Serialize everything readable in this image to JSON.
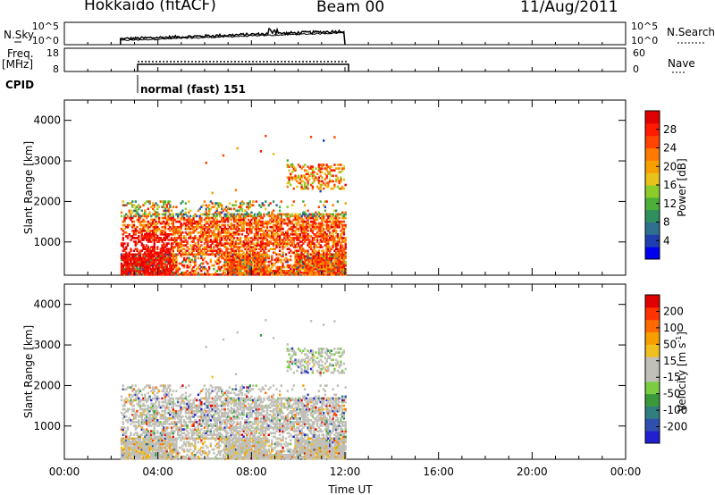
{
  "header": {
    "station": "Hokkaido (fitACF)",
    "beam": "Beam 00",
    "date": "11/Aug/2011"
  },
  "colors": {
    "palette": [
      "#0000ee",
      "#1f3fb0",
      "#2f6f8f",
      "#2f8f5f",
      "#4caf3a",
      "#8ccc2a",
      "#e6c21a",
      "#f5a000",
      "#ff7a00",
      "#ff4400",
      "#ff1a00",
      "#e00000"
    ],
    "velocity_palette": [
      "#2020d0",
      "#3050b0",
      "#2f7f7f",
      "#3a9a3a",
      "#7acc40",
      "#c0c0b8",
      "#c0c0b8",
      "#f0c020",
      "#f5a000",
      "#ff6a00",
      "#ff3300",
      "#e00000"
    ],
    "ground_scatter": "#c0c0b8"
  },
  "chart_data": [
    {
      "type": "line",
      "name": "nsky-nsearch",
      "ylabel": "N.Sky",
      "right_label": "N.Search",
      "y_ticks_left": [
        "10^5",
        "10^0"
      ],
      "y_ticks_right": [
        "10^5",
        "10^0"
      ],
      "x_range": [
        2.4,
        12.0
      ],
      "description_values": {
        "nsky_start": 0.1,
        "nsky_end": 0.6
      }
    },
    {
      "type": "line",
      "name": "freq-nave",
      "ylabel": "Freq.",
      "yunit": "[MHz]",
      "right_label": "Nave",
      "y_ticks_left": [
        "18",
        "8"
      ],
      "y_ticks_right": [
        "60",
        "0"
      ],
      "x_range": [
        2.4,
        12.0
      ]
    },
    {
      "type": "table",
      "name": "cpid",
      "label": "CPID",
      "value": "normal (fast) 151",
      "x_start": 2.4
    },
    {
      "type": "heatmap",
      "name": "power",
      "ylabel": "Slant Range [km]",
      "y_ticks": [
        "1000",
        "2000",
        "3000",
        "4000"
      ],
      "y_range": [
        180,
        4500
      ],
      "x_range": [
        0,
        24
      ],
      "colorbar_label": "Power [dB]",
      "colorbar_ticks": [
        "4",
        "8",
        "12",
        "16",
        "20",
        "24",
        "28"
      ],
      "colorbar_range": [
        0,
        32
      ]
    },
    {
      "type": "heatmap",
      "name": "velocity",
      "ylabel": "Slant Range [km]",
      "y_ticks": [
        "1000",
        "2000",
        "3000",
        "4000"
      ],
      "y_range": [
        180,
        4500
      ],
      "x_range": [
        0,
        24
      ],
      "xlabel": "Time UT",
      "x_ticks": [
        "00:00",
        "04:00",
        "08:00",
        "12:00",
        "16:00",
        "20:00",
        "00:00"
      ],
      "colorbar_label": "Velocity [m s",
      "colorbar_label_sup": "-1",
      "colorbar_label_end": "]",
      "colorbar_ticks": [
        "-200",
        "-100",
        "-50",
        "-15",
        "15",
        "50",
        "100",
        "200"
      ]
    }
  ]
}
